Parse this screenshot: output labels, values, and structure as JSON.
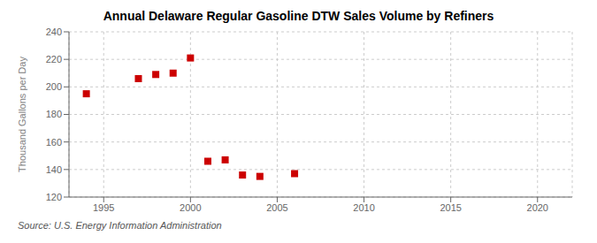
{
  "chart_data": {
    "type": "scatter",
    "title": "Annual Delaware Regular Gasoline DTW Sales Volume by Refiners",
    "ylabel": "Thousand Gallons per Day",
    "source": "Source: U.S. Energy Information Administration",
    "x": [
      1994,
      1997,
      1998,
      1999,
      2000,
      2001,
      2002,
      2003,
      2004,
      2006
    ],
    "values": [
      195,
      206,
      209,
      210,
      221,
      146,
      147,
      136,
      135,
      137
    ],
    "color": "#cc0000",
    "marker": "square",
    "xlim": [
      1993,
      2022
    ],
    "ylim": [
      120,
      240
    ],
    "xticks": [
      1995,
      2000,
      2005,
      2010,
      2015,
      2020
    ],
    "yticks": [
      120,
      140,
      160,
      180,
      200,
      220,
      240
    ],
    "grid": true
  }
}
